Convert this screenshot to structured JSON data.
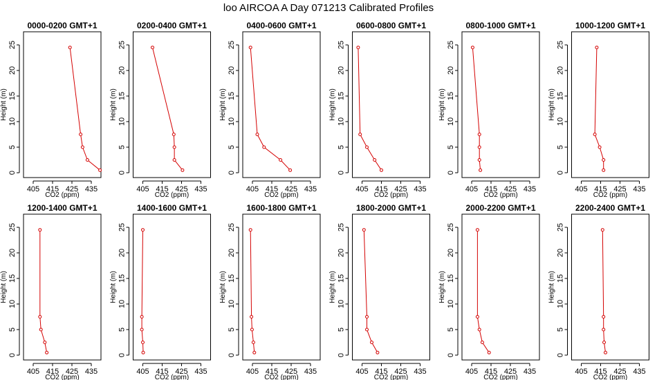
{
  "figure_title": "loo AIRCOA A  Day 071213  Calibrated Profiles",
  "colors": {
    "series": "#d40000",
    "axis": "#000000",
    "background": "#ffffff"
  },
  "chart_data": [
    {
      "type": "line",
      "title": "0000-0200 GMT+1",
      "xlabel": "CO2 (ppm)",
      "ylabel": "Height (m)",
      "xlim": [
        400,
        440
      ],
      "ylim": [
        0,
        25
      ],
      "xticks": [
        405,
        415,
        425,
        435
      ],
      "yticks": [
        0,
        5,
        10,
        15,
        20,
        25
      ],
      "x": [
        424.0,
        429.5,
        430.5,
        433.0,
        439.5
      ],
      "y": [
        24.5,
        7.5,
        5.0,
        2.5,
        0.5
      ]
    },
    {
      "type": "line",
      "title": "0200-0400 GMT+1",
      "xlabel": "CO2 (ppm)",
      "ylabel": "Height (m)",
      "xlim": [
        400,
        440
      ],
      "ylim": [
        0,
        25
      ],
      "xticks": [
        405,
        415,
        425,
        435
      ],
      "yticks": [
        0,
        5,
        10,
        15,
        20,
        25
      ],
      "x": [
        410.0,
        421.0,
        421.3,
        421.3,
        425.5
      ],
      "y": [
        24.5,
        7.5,
        5.0,
        2.5,
        0.5
      ]
    },
    {
      "type": "line",
      "title": "0400-0600 GMT+1",
      "xlabel": "CO2 (ppm)",
      "ylabel": "Height (m)",
      "xlim": [
        400,
        440
      ],
      "ylim": [
        0,
        25
      ],
      "xticks": [
        405,
        415,
        425,
        435
      ],
      "yticks": [
        0,
        5,
        10,
        15,
        20,
        25
      ],
      "x": [
        404.0,
        407.5,
        411.0,
        419.5,
        424.5
      ],
      "y": [
        24.5,
        7.5,
        5.0,
        2.5,
        0.5
      ]
    },
    {
      "type": "line",
      "title": "0600-0800 GMT+1",
      "xlabel": "CO2 (ppm)",
      "ylabel": "Height (m)",
      "xlim": [
        400,
        440
      ],
      "ylim": [
        0,
        25
      ],
      "xticks": [
        405,
        415,
        425,
        435
      ],
      "yticks": [
        0,
        5,
        10,
        15,
        20,
        25
      ],
      "x": [
        403.0,
        404.0,
        407.5,
        411.5,
        415.0
      ],
      "y": [
        24.5,
        7.5,
        5.0,
        2.5,
        0.5
      ]
    },
    {
      "type": "line",
      "title": "0800-1000 GMT+1",
      "xlabel": "CO2 (ppm)",
      "ylabel": "Height (m)",
      "xlim": [
        400,
        440
      ],
      "ylim": [
        0,
        25
      ],
      "xticks": [
        405,
        415,
        425,
        435
      ],
      "yticks": [
        0,
        5,
        10,
        15,
        20,
        25
      ],
      "x": [
        405.5,
        409.0,
        409.0,
        409.0,
        409.5
      ],
      "y": [
        24.5,
        7.5,
        5.0,
        2.5,
        0.5
      ]
    },
    {
      "type": "line",
      "title": "1000-1200 GMT+1",
      "xlabel": "CO2 (ppm)",
      "ylabel": "Height (m)",
      "xlim": [
        400,
        440
      ],
      "ylim": [
        0,
        25
      ],
      "xticks": [
        405,
        415,
        425,
        435
      ],
      "yticks": [
        0,
        5,
        10,
        15,
        20,
        25
      ],
      "x": [
        413.0,
        412.0,
        414.5,
        416.5,
        416.5
      ],
      "y": [
        24.5,
        7.5,
        5.0,
        2.5,
        0.5
      ]
    },
    {
      "type": "line",
      "title": "1200-1400 GMT+1",
      "xlabel": "CO2 (ppm)",
      "ylabel": "Height (m)",
      "xlim": [
        400,
        440
      ],
      "ylim": [
        0,
        25
      ],
      "xticks": [
        405,
        415,
        425,
        435
      ],
      "yticks": [
        0,
        5,
        10,
        15,
        20,
        25
      ],
      "x": [
        408.5,
        408.5,
        409.0,
        411.0,
        412.0
      ],
      "y": [
        24.5,
        7.5,
        5.0,
        2.5,
        0.5
      ]
    },
    {
      "type": "line",
      "title": "1400-1600 GMT+1",
      "xlabel": "CO2 (ppm)",
      "ylabel": "Height (m)",
      "xlim": [
        400,
        440
      ],
      "ylim": [
        0,
        25
      ],
      "xticks": [
        405,
        415,
        425,
        435
      ],
      "yticks": [
        0,
        5,
        10,
        15,
        20,
        25
      ],
      "x": [
        405.0,
        404.5,
        404.5,
        405.0,
        405.2
      ],
      "y": [
        24.5,
        7.5,
        5.0,
        2.5,
        0.5
      ]
    },
    {
      "type": "line",
      "title": "1600-1800 GMT+1",
      "xlabel": "CO2 (ppm)",
      "ylabel": "Height (m)",
      "xlim": [
        400,
        440
      ],
      "ylim": [
        0,
        25
      ],
      "xticks": [
        405,
        415,
        425,
        435
      ],
      "yticks": [
        0,
        5,
        10,
        15,
        20,
        25
      ],
      "x": [
        404.0,
        404.5,
        404.8,
        405.5,
        406.0
      ],
      "y": [
        24.5,
        7.5,
        5.0,
        2.5,
        0.5
      ]
    },
    {
      "type": "line",
      "title": "1800-2000 GMT+1",
      "xlabel": "CO2 (ppm)",
      "ylabel": "Height (m)",
      "xlim": [
        400,
        440
      ],
      "ylim": [
        0,
        25
      ],
      "xticks": [
        405,
        415,
        425,
        435
      ],
      "yticks": [
        0,
        5,
        10,
        15,
        20,
        25
      ],
      "x": [
        406.0,
        407.5,
        407.5,
        410.0,
        413.0
      ],
      "y": [
        24.5,
        7.5,
        5.0,
        2.5,
        0.5
      ]
    },
    {
      "type": "line",
      "title": "2000-2200 GMT+1",
      "xlabel": "CO2 (ppm)",
      "ylabel": "Height (m)",
      "xlim": [
        400,
        440
      ],
      "ylim": [
        0,
        25
      ],
      "xticks": [
        405,
        415,
        425,
        435
      ],
      "yticks": [
        0,
        5,
        10,
        15,
        20,
        25
      ],
      "x": [
        408.0,
        408.0,
        409.0,
        410.5,
        414.0
      ],
      "y": [
        24.5,
        7.5,
        5.0,
        2.5,
        0.5
      ]
    },
    {
      "type": "line",
      "title": "2200-2400 GMT+1",
      "xlabel": "CO2 (ppm)",
      "ylabel": "Height (m)",
      "xlim": [
        400,
        440
      ],
      "ylim": [
        0,
        25
      ],
      "xticks": [
        405,
        415,
        425,
        435
      ],
      "yticks": [
        0,
        5,
        10,
        15,
        20,
        25
      ],
      "x": [
        416.0,
        416.5,
        416.5,
        416.8,
        417.5
      ],
      "y": [
        24.5,
        7.5,
        5.0,
        2.5,
        0.5
      ]
    }
  ]
}
